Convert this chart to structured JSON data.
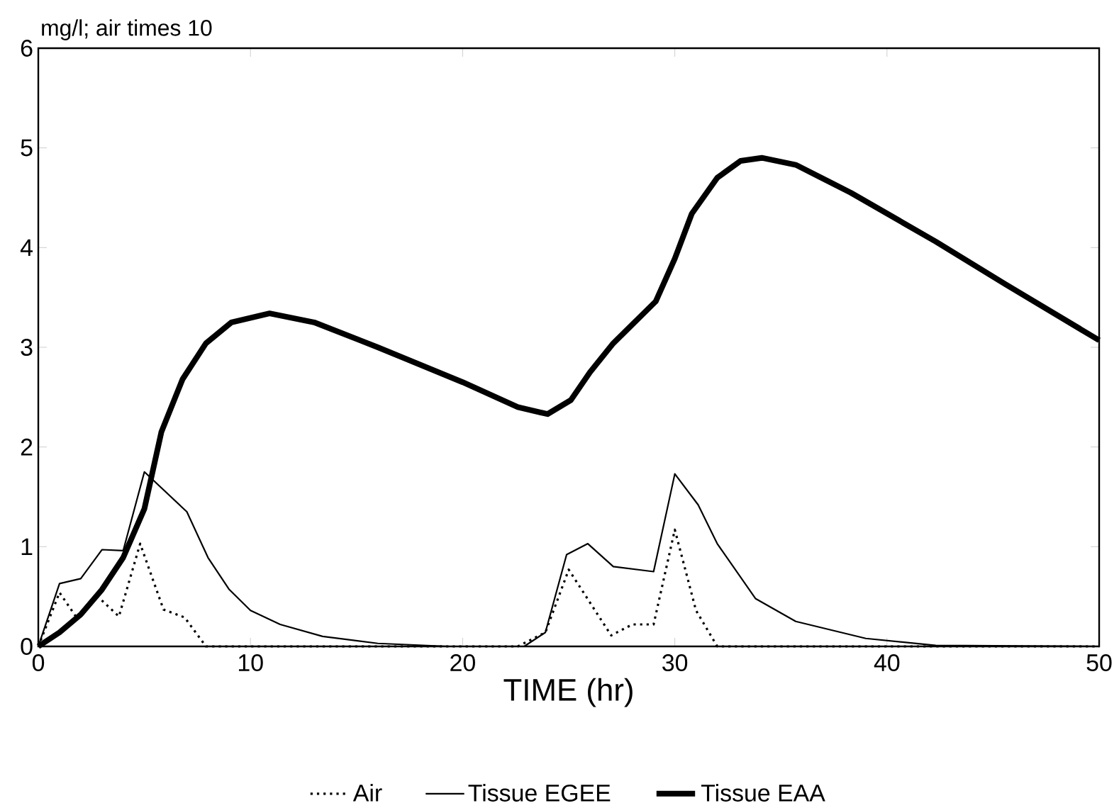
{
  "chart_data": {
    "type": "line",
    "xlabel": "TIME (hr)",
    "ylabel": "mg/l; air times 10",
    "xlim": [
      0,
      50
    ],
    "ylim": [
      0,
      6
    ],
    "xticks": [
      0,
      10,
      20,
      30,
      40,
      50
    ],
    "yticks": [
      0,
      1,
      2,
      3,
      4,
      5,
      6
    ],
    "grid": false,
    "legend": "bottom",
    "marker": "none",
    "series": [
      {
        "name": "Air",
        "color": "#000000",
        "line_style": "dotted",
        "x": [
          0,
          1,
          1.8,
          2.8,
          3.8,
          4.8,
          5.9,
          6.9,
          7.9,
          22.6,
          23.9,
          25,
          27,
          28,
          29,
          30,
          31,
          32,
          50
        ],
        "values": [
          0,
          0.54,
          0.29,
          0.5,
          0.3,
          1.03,
          0.37,
          0.29,
          0,
          0,
          0.14,
          0.77,
          0.11,
          0.22,
          0.22,
          1.17,
          0.36,
          0,
          0
        ]
      },
      {
        "name": "Tissue EGEE",
        "color": "#000000",
        "line_style": "solid",
        "x": [
          0,
          1,
          2,
          3,
          4,
          5,
          7,
          8,
          9,
          10,
          11.4,
          13.4,
          16,
          19.3,
          22.9,
          23.9,
          24.9,
          25.9,
          27.1,
          29,
          30,
          31.1,
          32,
          33.8,
          35.7,
          39,
          42.3,
          50
        ],
        "values": [
          0,
          0.63,
          0.68,
          0.97,
          0.96,
          1.75,
          1.35,
          0.89,
          0.57,
          0.36,
          0.22,
          0.1,
          0.03,
          0,
          0,
          0.14,
          0.92,
          1.03,
          0.8,
          0.75,
          1.73,
          1.42,
          1.03,
          0.48,
          0.25,
          0.08,
          0.01,
          0
        ]
      },
      {
        "name": "Tissue EAA",
        "color": "#000000",
        "line_style": "solid",
        "x": [
          0,
          1,
          2,
          3,
          4,
          5,
          5.8,
          6.8,
          7.9,
          9.1,
          10.9,
          13,
          16,
          20,
          22.6,
          24,
          25.1,
          26,
          27.1,
          29.1,
          30,
          30.8,
          32,
          33.1,
          34.1,
          35.7,
          38.3,
          42.3,
          45.6,
          50
        ],
        "values": [
          0,
          0.14,
          0.32,
          0.57,
          0.89,
          1.38,
          2.15,
          2.68,
          3.04,
          3.25,
          3.34,
          3.25,
          3.0,
          2.65,
          2.4,
          2.33,
          2.47,
          2.75,
          3.04,
          3.46,
          3.89,
          4.34,
          4.7,
          4.87,
          4.9,
          4.83,
          4.55,
          4.06,
          3.63,
          3.07
        ]
      }
    ]
  }
}
